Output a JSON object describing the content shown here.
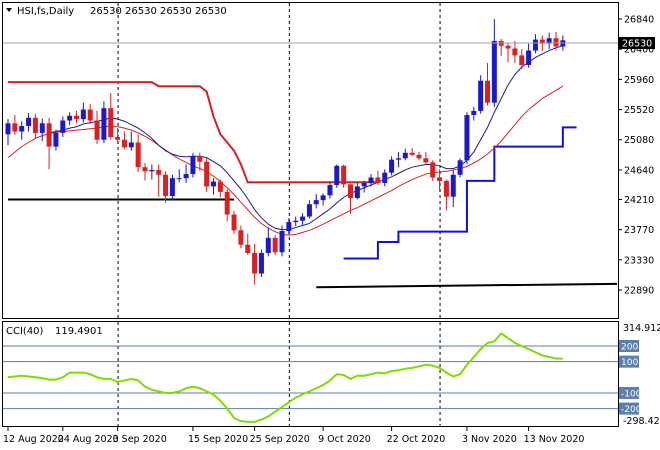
{
  "header": {
    "symbol_label": "HSI,fs,Daily",
    "ohlc": "26530 26530 26530 26530",
    "current_price": "26530"
  },
  "colors": {
    "bull": "#1a1acc",
    "bear": "#dd1f1f",
    "ma_fast": "#1a1a8c",
    "ma_slow": "#dd1f1f",
    "resistance": "#dd1f1f",
    "support": "#1010dd",
    "long_ma": "#000000",
    "cci": "#7fdc00",
    "level_line": "#5b7fae"
  },
  "chart_data": [
    {
      "type": "candlestick",
      "y_ticks": [
        "26840",
        "26400",
        "25960",
        "25520",
        "25080",
        "24640",
        "24210",
        "23770",
        "23330",
        "22890"
      ],
      "ylim": [
        22890,
        26840
      ],
      "x_ticks": [
        "12 Aug 2020",
        "24 Aug 2020",
        "3 Sep 2020",
        "15 Sep 2020",
        "25 Sep 2020",
        "9 Oct 2020",
        "22 Oct 2020",
        "3 Nov 2020",
        "13 Nov 2020"
      ],
      "candles": [
        [
          25160,
          25380,
          25000,
          25320
        ],
        [
          25320,
          25440,
          25150,
          25200
        ],
        [
          25200,
          25350,
          25080,
          25280
        ],
        [
          25280,
          25470,
          25200,
          25400
        ],
        [
          25400,
          25460,
          25100,
          25180
        ],
        [
          25180,
          25390,
          25060,
          25320
        ],
        [
          25320,
          25400,
          24650,
          24980
        ],
        [
          24980,
          25230,
          24920,
          25180
        ],
        [
          25180,
          25420,
          25120,
          25360
        ],
        [
          25360,
          25480,
          25290,
          25430
        ],
        [
          25430,
          25500,
          25320,
          25380
        ],
        [
          25380,
          25620,
          25330,
          25520
        ],
        [
          25520,
          25600,
          25310,
          25360
        ],
        [
          25360,
          25500,
          25020,
          25080
        ],
        [
          25080,
          25640,
          25030,
          25540
        ],
        [
          25540,
          25760,
          25080,
          25120
        ],
        [
          25120,
          25250,
          25020,
          25080
        ],
        [
          25080,
          25200,
          24940,
          24970
        ],
        [
          24970,
          25200,
          24920,
          25040
        ],
        [
          25040,
          25160,
          24610,
          24680
        ],
        [
          24680,
          24740,
          24490,
          24620
        ],
        [
          24620,
          24720,
          24500,
          24640
        ],
        [
          24640,
          24720,
          24250,
          24570
        ],
        [
          24570,
          24620,
          24160,
          24260
        ],
        [
          24260,
          24570,
          24200,
          24520
        ],
        [
          24520,
          24650,
          24460,
          24520
        ],
        [
          24520,
          24720,
          24450,
          24580
        ],
        [
          24580,
          24890,
          24530,
          24840
        ],
        [
          24840,
          24890,
          24630,
          24760
        ],
        [
          24760,
          24830,
          24320,
          24400
        ],
        [
          24400,
          24520,
          24280,
          24470
        ],
        [
          24470,
          24500,
          24240,
          24320
        ],
        [
          24320,
          24360,
          23890,
          23990
        ],
        [
          23990,
          24040,
          23710,
          23760
        ],
        [
          23760,
          23830,
          23500,
          23550
        ],
        [
          23550,
          23710,
          23400,
          23430
        ],
        [
          23430,
          23560,
          22970,
          23130
        ],
        [
          23130,
          23480,
          23080,
          23430
        ],
        [
          23430,
          23800,
          23380,
          23650
        ],
        [
          23650,
          23690,
          23400,
          23440
        ],
        [
          23440,
          23830,
          23380,
          23750
        ],
        [
          23750,
          23940,
          23700,
          23880
        ],
        [
          23880,
          23960,
          23820,
          23900
        ],
        [
          23900,
          24010,
          23840,
          23960
        ],
        [
          23960,
          24200,
          23930,
          24140
        ],
        [
          24140,
          24290,
          24080,
          24200
        ],
        [
          24200,
          24300,
          24120,
          24270
        ],
        [
          24270,
          24470,
          24220,
          24420
        ],
        [
          24420,
          24720,
          24380,
          24700
        ],
        [
          24700,
          24720,
          24380,
          24430
        ],
        [
          24430,
          24440,
          24000,
          24230
        ],
        [
          24230,
          24460,
          24210,
          24400
        ],
        [
          24400,
          24480,
          24310,
          24450
        ],
        [
          24450,
          24580,
          24400,
          24530
        ],
        [
          24530,
          24630,
          24420,
          24450
        ],
        [
          24450,
          24650,
          24400,
          24600
        ],
        [
          24600,
          24840,
          24560,
          24790
        ],
        [
          24790,
          24900,
          24680,
          24810
        ],
        [
          24810,
          24950,
          24780,
          24890
        ],
        [
          24890,
          24960,
          24840,
          24860
        ],
        [
          24860,
          24900,
          24780,
          24810
        ],
        [
          24810,
          24900,
          24720,
          24750
        ],
        [
          24750,
          24780,
          24480,
          24530
        ],
        [
          24530,
          24650,
          24330,
          24480
        ],
        [
          24480,
          24500,
          24050,
          24250
        ],
        [
          24250,
          24640,
          24100,
          24570
        ],
        [
          24570,
          24810,
          24530,
          24780
        ],
        [
          24780,
          25480,
          24730,
          25440
        ],
        [
          25440,
          25560,
          25360,
          25500
        ],
        [
          25500,
          26020,
          25460,
          25940
        ],
        [
          25940,
          26200,
          25580,
          25620
        ],
        [
          25620,
          26840,
          25560,
          26520
        ],
        [
          26520,
          26550,
          26300,
          26450
        ],
        [
          26450,
          26490,
          26210,
          26410
        ],
        [
          26410,
          26520,
          26200,
          26310
        ],
        [
          26310,
          26400,
          26110,
          26170
        ],
        [
          26170,
          26480,
          26130,
          26380
        ],
        [
          26380,
          26620,
          26340,
          26540
        ],
        [
          26540,
          26600,
          26370,
          26480
        ],
        [
          26480,
          26640,
          26400,
          26560
        ],
        [
          26560,
          26650,
          26380,
          26440
        ],
        [
          26440,
          26600,
          26380,
          26530
        ]
      ],
      "sma_fast": [
        null,
        null,
        null,
        null,
        null,
        null,
        25180,
        25200,
        25220,
        25250,
        25270,
        25310,
        25330,
        25350,
        25370,
        25400,
        25380,
        25350,
        25300,
        25250,
        25180,
        25100,
        25000,
        24920,
        24870,
        24840,
        24830,
        24840,
        24840,
        24820,
        24760,
        24700,
        24600,
        24480,
        24360,
        24220,
        24060,
        23940,
        23850,
        23790,
        23770,
        23770,
        23800,
        23830,
        23860,
        23930,
        24000,
        24070,
        24160,
        24240,
        24300,
        24340,
        24380,
        24420,
        24460,
        24500,
        24540,
        24590,
        24640,
        24680,
        24700,
        24720,
        24720,
        24700,
        24660,
        24660,
        24700,
        24780,
        24900,
        25080,
        25260,
        25480,
        25680,
        25880,
        26030,
        26140,
        26210,
        26280,
        26330,
        26380,
        26420,
        26450
      ],
      "sma_slow": [
        24820,
        24900,
        24980,
        25040,
        25100,
        25140,
        25170,
        25190,
        25200,
        25210,
        25220,
        25230,
        25240,
        25250,
        25270,
        25280,
        25270,
        25250,
        25220,
        25180,
        25130,
        25070,
        25000,
        24930,
        24860,
        24800,
        24750,
        24700,
        24660,
        24620,
        24550,
        24470,
        24380,
        24280,
        24170,
        24060,
        23950,
        23860,
        23790,
        23740,
        23700,
        23690,
        23700,
        23730,
        23760,
        23800,
        23850,
        23900,
        23950,
        24000,
        24050,
        24090,
        24140,
        24190,
        24240,
        24290,
        24340,
        24400,
        24450,
        24500,
        24540,
        24580,
        24600,
        24610,
        24620,
        24640,
        24660,
        24690,
        24740,
        24800,
        24870,
        24960,
        25060,
        25180,
        25300,
        25420,
        25520,
        25600,
        25680,
        25740,
        25800,
        25860
      ],
      "resistance_line": [
        {
          "from": 0,
          "to": 36,
          "values": [
            25920,
            25920,
            25920,
            25920,
            25920,
            25920,
            25920,
            25920,
            25920,
            25920,
            25920,
            25920,
            25920,
            25920,
            25920,
            25920,
            25920,
            25920,
            25920,
            25920,
            25920,
            25920,
            25860,
            25860,
            25860,
            25860,
            25860,
            25860,
            25860,
            25780,
            25420,
            25160,
            25040,
            24920,
            24720,
            24460,
            24460
          ]
        },
        {
          "from": 36,
          "to": 54,
          "value": 24460
        }
      ],
      "support_line": [
        {
          "from": 49,
          "to": 54,
          "value": 23350
        },
        {
          "from": 54,
          "to": 57,
          "value": 23590
        },
        {
          "from": 57,
          "to": 67,
          "value": 23740
        },
        {
          "from": 67,
          "to": 71,
          "value": 24480
        },
        {
          "from": 71,
          "to": 72,
          "value": 24980
        },
        {
          "from": 72,
          "to": 81,
          "value": 24980
        },
        {
          "from": 81,
          "to": 83,
          "value": 25260
        }
      ],
      "long_ma": [
        {
          "value": 24210,
          "from": 0,
          "to": 33
        },
        {
          "value": 22930,
          "from": 45,
          "to": 92,
          "end": 22980
        }
      ]
    },
    {
      "type": "line",
      "label": "CCI(40)",
      "current_value": "119.4901",
      "y_ticks": [
        "314.9128",
        "200",
        "100",
        "0",
        "-100",
        "-200",
        "-298.4227"
      ],
      "ylim": [
        -298.4227,
        314.9128
      ],
      "levels": [
        200,
        100,
        -100,
        -200
      ],
      "values": [
        0,
        5,
        10,
        5,
        0,
        -5,
        -15,
        -15,
        0,
        30,
        30,
        30,
        20,
        0,
        -10,
        -10,
        -30,
        -20,
        -10,
        -20,
        -60,
        -80,
        -90,
        -100,
        -100,
        -90,
        -70,
        -60,
        -70,
        -90,
        -110,
        -150,
        -200,
        -260,
        -280,
        -285,
        -285,
        -270,
        -250,
        -220,
        -190,
        -160,
        -130,
        -110,
        -90,
        -70,
        -50,
        -20,
        20,
        15,
        -10,
        10,
        10,
        20,
        30,
        25,
        40,
        45,
        55,
        60,
        70,
        80,
        75,
        60,
        30,
        5,
        20,
        80,
        130,
        180,
        220,
        230,
        280,
        250,
        220,
        200,
        180,
        160,
        140,
        130,
        120,
        119.5
      ]
    }
  ]
}
